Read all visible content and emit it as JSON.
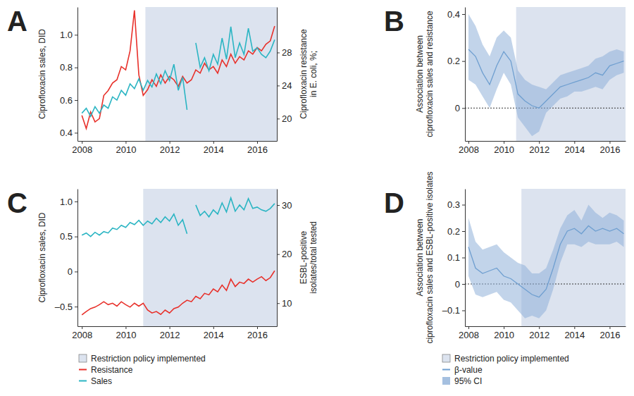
{
  "chart_data": [
    {
      "type": "line",
      "title": "A",
      "x": [
        2008,
        2008.2,
        2008.4,
        2008.6,
        2008.8,
        2009,
        2009.2,
        2009.4,
        2009.6,
        2009.8,
        2010,
        2010.2,
        2010.4,
        2010.6,
        2010.8,
        2011,
        2011.2,
        2011.4,
        2011.6,
        2011.8,
        2012,
        2012.2,
        2012.4,
        2012.6,
        2012.8,
        2013,
        2013.2,
        2013.4,
        2013.6,
        2013.8,
        2014,
        2014.2,
        2014.4,
        2014.6,
        2014.8,
        2015,
        2015.2,
        2015.4,
        2015.6,
        2015.8,
        2016,
        2016.2,
        2016.4,
        2016.6,
        2016.8
      ],
      "xlim": [
        2007.8,
        2016.9
      ],
      "xticks": [
        2008,
        2010,
        2012,
        2014,
        2016
      ],
      "ylabel": "Ciprofloxacin sales, DID",
      "ylim": [
        0.35,
        1.17
      ],
      "yticks": [
        0.4,
        0.6,
        0.8,
        {
          "value": 1,
          "label": "1.0"
        }
      ],
      "y2label": [
        "Ciprofloxacin resistance",
        "in E. coli, %;"
      ],
      "y2lim": [
        17.3,
        33.5
      ],
      "y2ticks": [
        20,
        24,
        28
      ],
      "shaded_region": {
        "name": "Restriction policy implemented",
        "color": "#dce3ef",
        "start": 2010.9,
        "end": 2016.9
      },
      "series": [
        {
          "name": "Resistance",
          "color": "#e8302a",
          "axis": "y2",
          "values": [
            20.4,
            18.8,
            20.8,
            19.6,
            20.0,
            22.8,
            23.4,
            24.3,
            24.7,
            26.3,
            25.9,
            28.2,
            33.1,
            25.3,
            22.8,
            23.5,
            24.7,
            23.9,
            25.3,
            24.3,
            25.1,
            24.7,
            23.9,
            25.1,
            24.3,
            24.7,
            25.9,
            25.5,
            26.7,
            25.9,
            26.3,
            25.5,
            27.1,
            26.3,
            27.8,
            26.7,
            27.5,
            27.1,
            28.2,
            27.8,
            28.6,
            28.2,
            29.0,
            29.4,
            31.2
          ]
        },
        {
          "name": "Sales",
          "color": "#2bb5c3",
          "values": [
            0.52,
            0.55,
            0.5,
            0.56,
            0.52,
            0.57,
            0.55,
            0.62,
            0.6,
            0.66,
            0.63,
            0.7,
            0.67,
            0.73,
            0.66,
            0.72,
            0.68,
            0.76,
            0.7,
            0.78,
            0.72,
            0.82,
            0.66,
            0.74,
            0.54,
            null,
            0.95,
            0.8,
            0.86,
            0.78,
            0.88,
            0.82,
            0.98,
            0.85,
            1.05,
            0.86,
            0.95,
            0.88,
            1.04,
            0.9,
            0.92,
            0.88,
            0.86,
            0.9,
            0.97
          ]
        }
      ]
    },
    {
      "type": "line",
      "title": "B",
      "x": [
        2008,
        2008.4,
        2008.8,
        2009.2,
        2009.6,
        2010,
        2010.4,
        2010.8,
        2011.2,
        2011.6,
        2012,
        2012.4,
        2012.8,
        2013.2,
        2013.6,
        2014,
        2014.4,
        2014.8,
        2015.2,
        2015.6,
        2016,
        2016.4,
        2016.8
      ],
      "xlim": [
        2007.8,
        2016.9
      ],
      "xticks": [
        2008,
        2010,
        2012,
        2014,
        2016
      ],
      "ylabel": [
        "Association between",
        "ciprofloxacin sales and resistance"
      ],
      "ylim": [
        -0.14,
        0.43
      ],
      "yticks": [
        0,
        0.2,
        0.4
      ],
      "hline": 0,
      "shaded_region": {
        "name": "Restriction policy implemented",
        "color": "#dce3ef",
        "start": 2010.7,
        "end": 2016.9
      },
      "series": [
        {
          "name": "β-value",
          "color": "#6f9fd0",
          "values": [
            0.25,
            0.22,
            0.15,
            0.1,
            0.18,
            0.24,
            0.2,
            0.06,
            0.03,
            0.01,
            0.0,
            0.03,
            0.06,
            0.09,
            0.1,
            0.11,
            0.12,
            0.13,
            0.15,
            0.14,
            0.18,
            0.19,
            0.2
          ]
        },
        {
          "name": "95% CI",
          "type": "area",
          "color": "#8fb0d8",
          "lower": [
            0.12,
            0.1,
            0.05,
            0.0,
            0.08,
            0.15,
            0.1,
            -0.04,
            -0.08,
            -0.12,
            -0.1,
            -0.02,
            0.01,
            0.04,
            0.05,
            0.07,
            0.07,
            0.08,
            0.09,
            0.08,
            0.12,
            0.14,
            0.15
          ],
          "upper": [
            0.4,
            0.35,
            0.27,
            0.22,
            0.3,
            0.33,
            0.3,
            0.16,
            0.12,
            0.1,
            0.09,
            0.08,
            0.11,
            0.14,
            0.15,
            0.16,
            0.17,
            0.18,
            0.21,
            0.22,
            0.24,
            0.25,
            0.24
          ]
        }
      ]
    },
    {
      "type": "line",
      "title": "C",
      "x": [
        2008,
        2008.2,
        2008.4,
        2008.6,
        2008.8,
        2009,
        2009.2,
        2009.4,
        2009.6,
        2009.8,
        2010,
        2010.2,
        2010.4,
        2010.6,
        2010.8,
        2011,
        2011.2,
        2011.4,
        2011.6,
        2011.8,
        2012,
        2012.2,
        2012.4,
        2012.6,
        2012.8,
        2013,
        2013.2,
        2013.4,
        2013.6,
        2013.8,
        2014,
        2014.2,
        2014.4,
        2014.6,
        2014.8,
        2015,
        2015.2,
        2015.4,
        2015.6,
        2015.8,
        2016,
        2016.2,
        2016.4,
        2016.6,
        2016.8
      ],
      "xlim": [
        2007.8,
        2016.9
      ],
      "xticks": [
        2008,
        2010,
        2012,
        2014,
        2016
      ],
      "ylabel": "Ciprofloxacin sales, DID",
      "ylim": [
        -0.78,
        1.18
      ],
      "yticks": [
        {
          "value": -0.5,
          "label": "–0.5"
        },
        0,
        0.5,
        {
          "value": 1,
          "label": "1.0"
        }
      ],
      "y2label": [
        "ESBL-positive",
        "isolates/total tested"
      ],
      "y2lim": [
        5.3,
        33.3
      ],
      "y2ticks": [
        10,
        20,
        30
      ],
      "shaded_region": {
        "name": "Restriction policy implemented",
        "color": "#dce3ef",
        "start": 2010.8,
        "end": 2016.9
      },
      "legend": "bottom",
      "series": [
        {
          "name": "Resistance",
          "color": "#e8302a",
          "axis": "y2",
          "values": [
            7.6,
            8.3,
            8.9,
            9.2,
            9.7,
            10.3,
            9.7,
            10.0,
            9.4,
            10.3,
            9.7,
            9.2,
            10.0,
            9.4,
            10.0,
            8.6,
            8.0,
            8.3,
            7.7,
            8.6,
            8.0,
            8.9,
            9.2,
            10.0,
            10.6,
            10.3,
            11.4,
            10.9,
            12.0,
            11.7,
            12.9,
            12.3,
            13.7,
            12.6,
            14.9,
            13.4,
            14.3,
            14.0,
            14.9,
            14.3,
            14.9,
            15.4,
            14.6,
            15.2,
            16.6
          ]
        },
        {
          "name": "Sales",
          "color": "#2bb5c3",
          "values": [
            0.52,
            0.55,
            0.5,
            0.56,
            0.52,
            0.57,
            0.55,
            0.62,
            0.6,
            0.66,
            0.63,
            0.7,
            0.67,
            0.73,
            0.66,
            0.72,
            0.68,
            0.76,
            0.7,
            0.78,
            0.72,
            0.82,
            0.66,
            0.74,
            0.54,
            null,
            0.95,
            0.8,
            0.86,
            0.78,
            0.88,
            0.82,
            0.98,
            0.85,
            1.05,
            0.86,
            0.95,
            0.88,
            1.04,
            0.9,
            0.92,
            0.88,
            0.86,
            0.9,
            0.97
          ]
        }
      ]
    },
    {
      "type": "line",
      "title": "D",
      "x": [
        2008,
        2008.4,
        2008.8,
        2009.2,
        2009.6,
        2010,
        2010.4,
        2010.8,
        2011.2,
        2011.6,
        2012,
        2012.4,
        2012.8,
        2013.2,
        2013.6,
        2014,
        2014.4,
        2014.8,
        2015.2,
        2015.6,
        2016,
        2016.4,
        2016.8
      ],
      "xlim": [
        2007.8,
        2016.9
      ],
      "xticks": [
        2008,
        2010,
        2012,
        2014,
        2016
      ],
      "ylabel": [
        "Association between",
        "ciprofloxacin sales and ESBL-positive isolates"
      ],
      "ylim": [
        -0.16,
        0.36
      ],
      "yticks": [
        {
          "value": -0.1,
          "label": "–0.1"
        },
        0,
        0.1,
        0.2,
        0.3
      ],
      "hline": 0,
      "shaded_region": {
        "name": "Restriction policy implemented",
        "color": "#dce3ef",
        "start": 2011.0,
        "end": 2016.9
      },
      "legend": "bottom",
      "series": [
        {
          "name": "β-value",
          "color": "#6f9fd0",
          "values": [
            0.14,
            0.06,
            0.04,
            0.05,
            0.06,
            0.03,
            0.02,
            0.0,
            -0.02,
            -0.04,
            -0.05,
            -0.02,
            0.06,
            0.15,
            0.2,
            0.21,
            0.19,
            0.22,
            0.2,
            0.21,
            0.2,
            0.21,
            0.19
          ]
        },
        {
          "name": "95% CI",
          "type": "area",
          "color": "#8fb0d8",
          "lower": [
            0.03,
            -0.04,
            -0.05,
            -0.04,
            -0.03,
            -0.06,
            -0.07,
            -0.1,
            -0.13,
            -0.12,
            -0.13,
            -0.1,
            -0.02,
            0.08,
            0.15,
            0.15,
            0.14,
            0.16,
            0.15,
            0.15,
            0.15,
            0.16,
            0.14
          ],
          "upper": [
            0.25,
            0.16,
            0.13,
            0.14,
            0.15,
            0.12,
            0.1,
            0.08,
            0.07,
            0.04,
            0.04,
            0.06,
            0.13,
            0.21,
            0.26,
            0.28,
            0.24,
            0.3,
            0.27,
            0.25,
            0.27,
            0.26,
            0.24
          ]
        }
      ]
    }
  ]
}
